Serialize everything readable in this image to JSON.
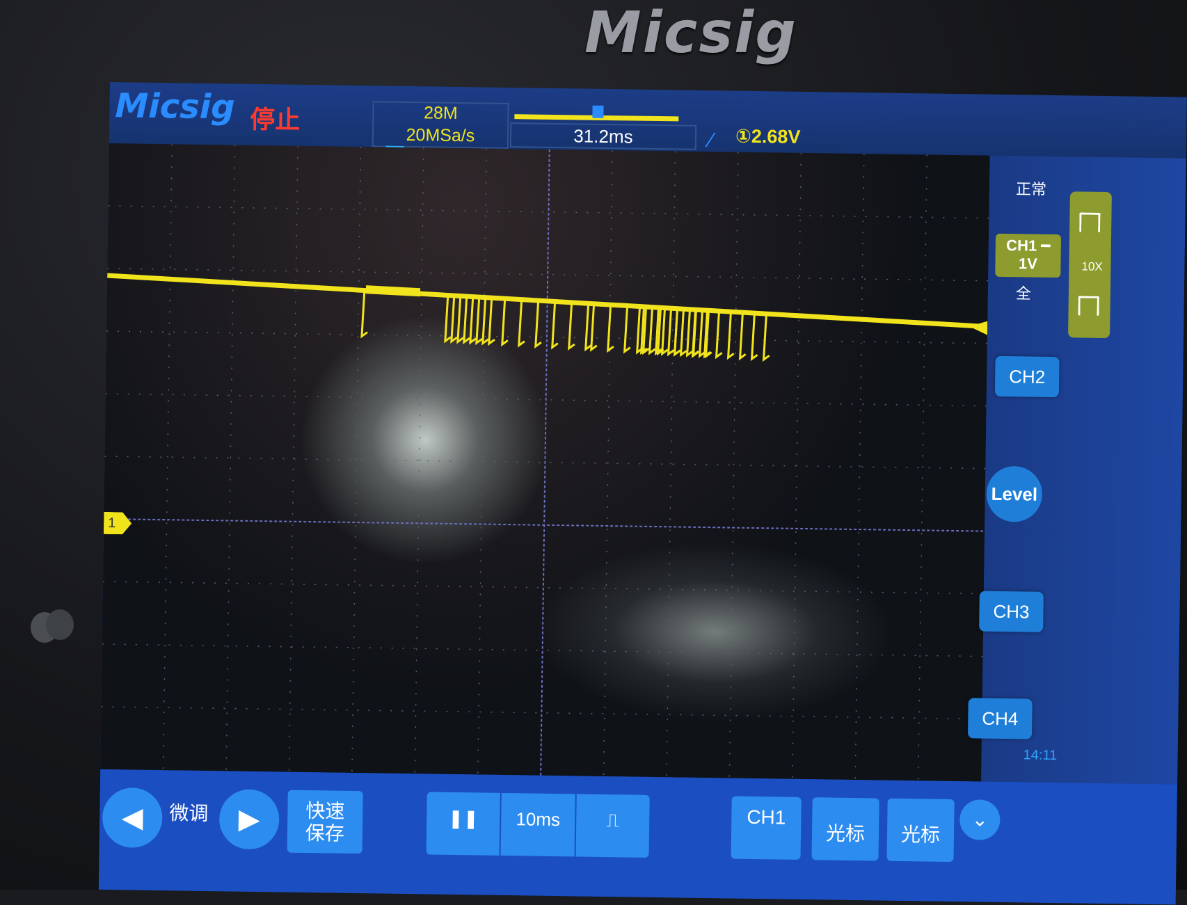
{
  "device": {
    "bezel_brand": "Micsig"
  },
  "status_bar": {
    "brand": "Micsig",
    "run_state": "停止",
    "memory_depth": "28M",
    "sample_rate": "20MSa/s",
    "trigger_marker": "T",
    "horizontal_position": "31.2ms",
    "trigger_slope_icon": "rising-edge-icon",
    "trigger_level": "①2.68V"
  },
  "waveform": {
    "channel_marker": "1",
    "color": "#f2e41c",
    "description_type": "pulse-burst",
    "pulse_count": 40
  },
  "side_panel": {
    "trigger_mode": "正常",
    "ch1": {
      "name": "CH1 ━",
      "scale": "1V"
    },
    "bandwidth": "全",
    "probe_ratio": "10X",
    "ch2": "CH2",
    "level": "Level",
    "ch3": "CH3",
    "ch4": "CH4",
    "clock": "14:11"
  },
  "toolbar": {
    "fine_adjust": "微调",
    "quick_save": "快速\n保存",
    "run_stop_icon": "pause-icon",
    "timebase": "10ms",
    "single_icon": "single-pulse-icon",
    "ch1_chip": "CH1",
    "cursor1": "光标",
    "cursor2": "光标",
    "expand_icon": "chevron-down-icon"
  },
  "colors": {
    "trace": "#f2e41c",
    "screen_bg": "#0f1217",
    "panel_blue": "#1f7fd8",
    "stop_red": "#ff3b2f"
  }
}
